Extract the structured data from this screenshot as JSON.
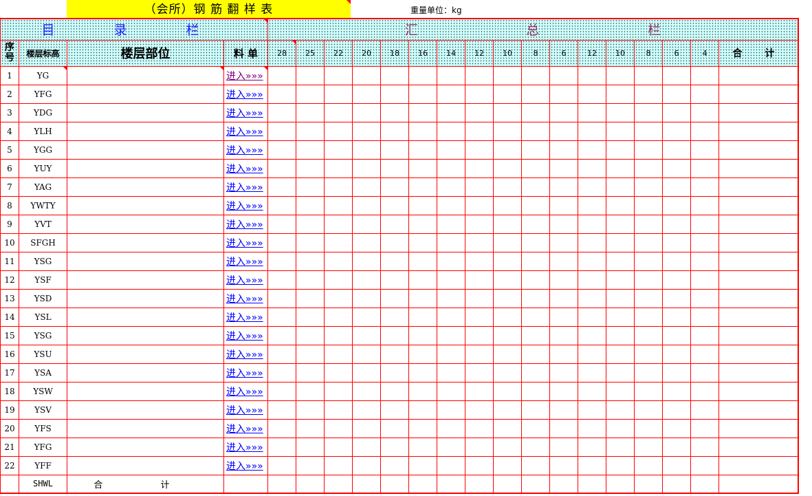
{
  "title": "（会所）钢 筋 翻 样 表",
  "weight_unit": "重量单位：kg",
  "header": {
    "directory": "目 录 栏",
    "summary_chars": [
      "汇",
      "总",
      "栏"
    ],
    "seq": "序号",
    "floor_elev": "楼层标高",
    "floor_part": "楼层部位",
    "material_list": "料 单",
    "diameters": [
      "28",
      "25",
      "22",
      "20",
      "18",
      "16",
      "14",
      "12",
      "10",
      "8",
      "6",
      "12",
      "10",
      "8",
      "6",
      "4"
    ],
    "total": "合 计"
  },
  "rows": [
    {
      "seq": "1",
      "floor": "YG",
      "link": "进入»»»",
      "visited": true
    },
    {
      "seq": "2",
      "floor": "YFG",
      "link": "进入»»»"
    },
    {
      "seq": "3",
      "floor": "YDG",
      "link": "进入»»»"
    },
    {
      "seq": "4",
      "floor": "YLH",
      "link": "进入»»»"
    },
    {
      "seq": "5",
      "floor": "YGG",
      "link": "进入»»»"
    },
    {
      "seq": "6",
      "floor": "YUY",
      "link": "进入»»»"
    },
    {
      "seq": "7",
      "floor": "YAG",
      "link": "进入»»»"
    },
    {
      "seq": "8",
      "floor": "YWTY",
      "link": "进入»»»"
    },
    {
      "seq": "9",
      "floor": "YVT",
      "link": "进入»»»"
    },
    {
      "seq": "10",
      "floor": "SFGH",
      "link": "进入»»»"
    },
    {
      "seq": "11",
      "floor": "YSG",
      "link": "进入»»»"
    },
    {
      "seq": "12",
      "floor": "YSF",
      "link": "进入»»»"
    },
    {
      "seq": "13",
      "floor": "YSD",
      "link": "进入»»»"
    },
    {
      "seq": "14",
      "floor": "YSL",
      "link": "进入»»»"
    },
    {
      "seq": "15",
      "floor": "YSG",
      "link": "进入»»»"
    },
    {
      "seq": "16",
      "floor": "YSU",
      "link": "进入»»»"
    },
    {
      "seq": "17",
      "floor": "YSA",
      "link": "进入»»»"
    },
    {
      "seq": "18",
      "floor": "YSW",
      "link": "进入»»»"
    },
    {
      "seq": "19",
      "floor": "YSV",
      "link": "进入»»»"
    },
    {
      "seq": "20",
      "floor": "YFS",
      "link": "进入»»»"
    },
    {
      "seq": "21",
      "floor": "YFG",
      "link": "进入»»»"
    },
    {
      "seq": "22",
      "floor": "YFF",
      "link": "进入»»»"
    }
  ],
  "footer": {
    "floor": "SHWL",
    "label": "合 计"
  },
  "colors": {
    "grid": "#ff0000",
    "header_bg": "#ccffff",
    "title_bg": "#ffff00",
    "link": "#0000ff",
    "visited": "#800080"
  }
}
